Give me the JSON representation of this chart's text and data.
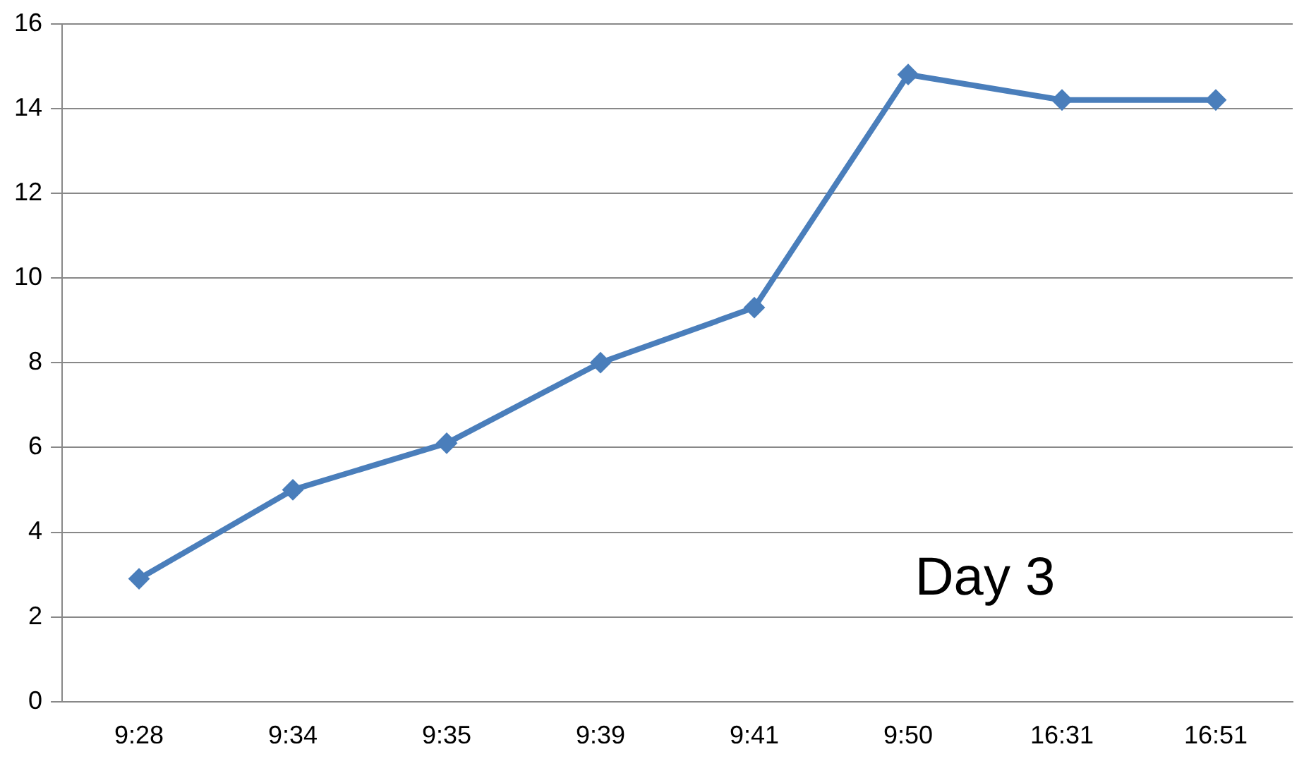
{
  "chart_data": {
    "type": "line",
    "categories": [
      "9:28",
      "9:34",
      "9:35",
      "9:39",
      "9:41",
      "9:50",
      "16:31",
      "16:51"
    ],
    "series": [
      {
        "color": "#4a7ebb",
        "values": [
          2.9,
          5.0,
          6.1,
          8.0,
          9.3,
          14.8,
          14.2,
          14.2
        ]
      }
    ],
    "ylim": [
      0,
      16
    ],
    "yticks": [
      0,
      2,
      4,
      6,
      8,
      10,
      12,
      14,
      16
    ],
    "grid": "y",
    "marker": "diamond",
    "line_style": "solid",
    "legend": false,
    "annotations": [
      "Day 3"
    ]
  }
}
